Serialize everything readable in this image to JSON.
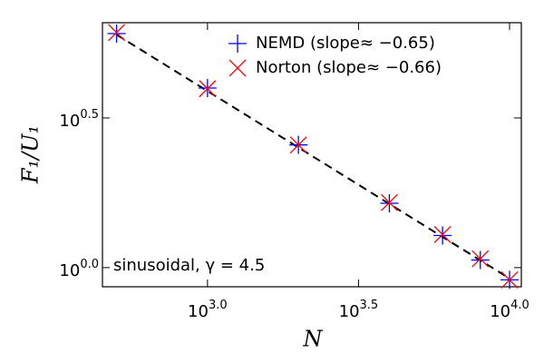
{
  "chart_data": {
    "type": "scatter",
    "xlabel": "N",
    "ylabel": "F₁/U₁",
    "annotation": "sinusoidal, γ = 4.5",
    "log_x": true,
    "log_y": true,
    "x": [
      500,
      1000,
      2000,
      4000,
      6000,
      8000,
      10000
    ],
    "series": [
      {
        "name": "NEMD (slope≈ −0.65)",
        "color": "#0000ff",
        "marker": "plus",
        "values": [
          6.05,
          3.98,
          2.57,
          1.64,
          1.28,
          1.06,
          0.91
        ]
      },
      {
        "name": "Norton (slope≈ −0.66)",
        "color": "#ff0000",
        "marker": "x",
        "values": [
          6.1,
          3.96,
          2.57,
          1.65,
          1.29,
          1.07,
          0.91
        ]
      }
    ],
    "fit_line": {
      "x": [
        500,
        10000
      ],
      "values": [
        6.0,
        0.92
      ],
      "color": "#000000",
      "dashed": true
    },
    "xlim": [
      449,
      10940
    ],
    "ylim": [
      0.863,
      6.58
    ],
    "xticks": [
      {
        "value": 1000,
        "label": "10",
        "exponent": "3.0"
      },
      {
        "value": 3162.3,
        "label": "10",
        "exponent": "3.5"
      },
      {
        "value": 10000,
        "label": "10",
        "exponent": "4.0"
      }
    ],
    "yticks": [
      {
        "value": 1,
        "label": "10",
        "exponent": "0.0"
      },
      {
        "value": 3.1623,
        "label": "10",
        "exponent": "0.5"
      }
    ],
    "legend": "upper-right",
    "grid": false
  }
}
